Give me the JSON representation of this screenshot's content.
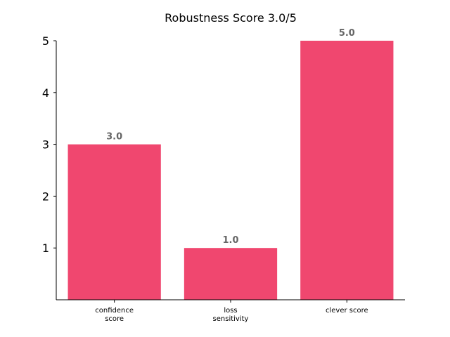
{
  "chart_data": {
    "type": "bar",
    "title": "Robustness Score 3.0/5",
    "xlabel": "",
    "ylabel": "",
    "categories": [
      [
        "confidence",
        "score"
      ],
      [
        "loss",
        "sensitivity"
      ],
      [
        "clever score"
      ]
    ],
    "values": [
      3.0,
      1.0,
      5.0
    ],
    "data_labels": [
      "3.0",
      "1.0",
      "5.0"
    ],
    "yticks": [
      1,
      2,
      3,
      4,
      5
    ],
    "ylim": [
      0,
      5
    ],
    "grid": false,
    "legend": "none",
    "bar_color": "#f0476f",
    "data_label_color": "#666666"
  }
}
